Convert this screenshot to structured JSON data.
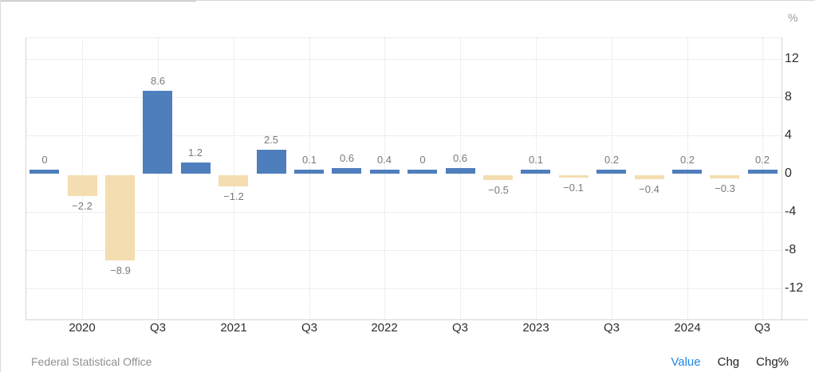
{
  "chart_data": {
    "type": "bar",
    "values": [
      0,
      -2.2,
      -8.9,
      8.6,
      1.2,
      -1.2,
      2.5,
      0.1,
      0.6,
      0.4,
      0,
      0.6,
      -0.5,
      0.1,
      -0.1,
      0.2,
      -0.4,
      0.2,
      -0.3,
      0.2
    ],
    "value_labels": [
      "0",
      "-2.2",
      "-8.9",
      "8.6",
      "1.2",
      "-1.2",
      "2.5",
      "0.1",
      "0.6",
      "0.4",
      "0",
      "0.6",
      "-0.5",
      "0.1",
      "-0.1",
      "0.2",
      "-0.4",
      "0.2",
      "-0.3",
      "0.2"
    ],
    "x_tick_labels": [
      "2020",
      "Q3",
      "2021",
      "Q3",
      "2022",
      "Q3",
      "2023",
      "Q3",
      "2024",
      "Q3"
    ],
    "x_tick_bar_indices": [
      1,
      3,
      5,
      7,
      9,
      11,
      13,
      15,
      17,
      19
    ],
    "y_ticks": [
      12,
      8,
      4,
      0,
      -4,
      -8,
      -12
    ],
    "y_unit": "%",
    "ylim": [
      -15.2,
      14.2
    ],
    "grid": "dotted",
    "legend_position": "none",
    "title": ""
  },
  "colors": {
    "positive_bar": "#4f7ebd",
    "negative_bar": "#f4ddb0",
    "active_toggle": "#1e87e5",
    "inactive_toggle": "#222222"
  },
  "footer": {
    "source": "Federal Statistical Office",
    "toggles": [
      {
        "label": "Value",
        "active": true
      },
      {
        "label": "Chg",
        "active": false
      },
      {
        "label": "Chg%",
        "active": false
      }
    ]
  }
}
